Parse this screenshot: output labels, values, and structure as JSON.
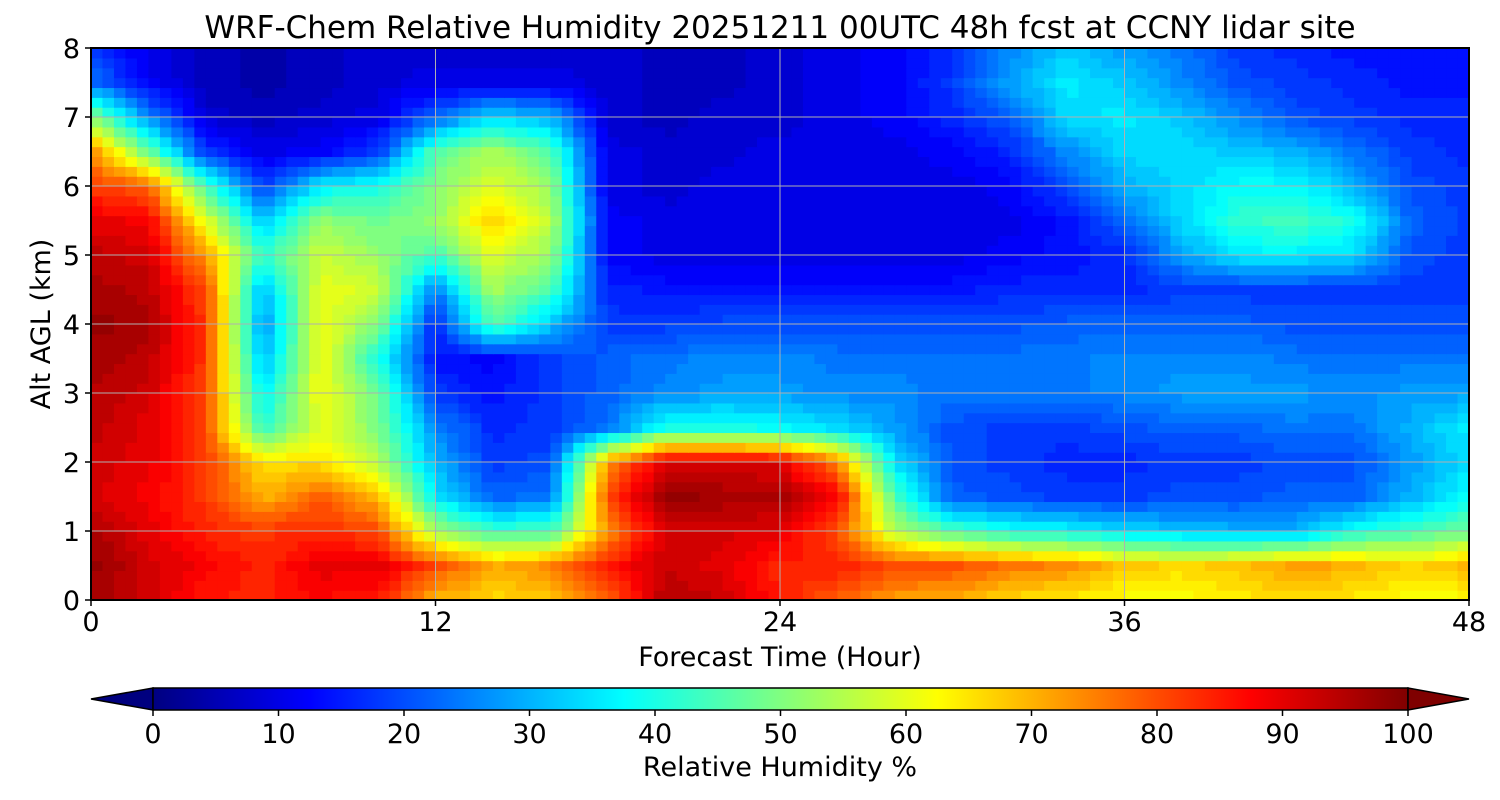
{
  "chart_data": {
    "type": "heatmap",
    "subtype": "filled-contour time-height cross section",
    "title": "WRF-Chem Relative Humidity 20251211 00UTC 48h fcst at CCNY lidar site",
    "xlabel": "Forecast Time (Hour)",
    "ylabel": "Alt AGL (km)",
    "xlim": [
      0,
      48
    ],
    "ylim": [
      0,
      8
    ],
    "x_ticks": [
      0,
      12,
      24,
      36,
      48
    ],
    "y_ticks": [
      0,
      1,
      2,
      3,
      4,
      5,
      6,
      7,
      8
    ],
    "grid": true,
    "colormap": "jet",
    "colorbar": {
      "label": "Relative Humidity %",
      "range": [
        0,
        100
      ],
      "ticks": [
        0,
        10,
        20,
        30,
        40,
        50,
        60,
        70,
        80,
        90,
        100
      ],
      "orientation": "horizontal",
      "extend": "both",
      "placement": "bottom"
    },
    "x": [
      0,
      2,
      4,
      6,
      8,
      10,
      12,
      14,
      16,
      18,
      20,
      22,
      24,
      26,
      28,
      30,
      32,
      34,
      36,
      38,
      40,
      42,
      44,
      46,
      48
    ],
    "y": [
      0,
      0.5,
      1,
      1.5,
      2,
      2.5,
      3,
      3.5,
      4,
      4.5,
      5,
      5.5,
      6,
      6.5,
      7,
      7.5,
      8
    ],
    "z": [
      [
        96,
        92,
        85,
        84,
        87,
        85,
        70,
        66,
        68,
        78,
        95,
        93,
        85,
        78,
        72,
        70,
        66,
        64,
        62,
        62,
        64,
        66,
        64,
        62,
        62
      ],
      [
        98,
        92,
        88,
        84,
        90,
        90,
        80,
        70,
        74,
        85,
        93,
        90,
        84,
        85,
        80,
        80,
        76,
        74,
        68,
        66,
        68,
        72,
        70,
        66,
        70
      ],
      [
        96,
        90,
        84,
        82,
        84,
        80,
        54,
        44,
        44,
        72,
        92,
        92,
        90,
        80,
        55,
        45,
        40,
        38,
        34,
        32,
        30,
        30,
        40,
        44,
        48
      ],
      [
        92,
        88,
        82,
        70,
        78,
        70,
        36,
        22,
        24,
        80,
        98,
        96,
        96,
        88,
        45,
        22,
        20,
        18,
        18,
        20,
        20,
        22,
        22,
        30,
        38
      ],
      [
        92,
        90,
        82,
        65,
        66,
        55,
        30,
        18,
        20,
        72,
        92,
        92,
        90,
        75,
        35,
        20,
        18,
        16,
        16,
        18,
        18,
        20,
        20,
        28,
        34
      ],
      [
        94,
        90,
        80,
        42,
        60,
        50,
        26,
        16,
        18,
        24,
        40,
        40,
        38,
        34,
        28,
        20,
        18,
        18,
        20,
        22,
        22,
        24,
        24,
        30,
        36
      ],
      [
        95,
        92,
        80,
        36,
        62,
        48,
        18,
        14,
        18,
        22,
        26,
        28,
        28,
        26,
        26,
        24,
        24,
        24,
        26,
        28,
        28,
        28,
        26,
        28,
        28
      ],
      [
        96,
        94,
        82,
        30,
        62,
        40,
        14,
        12,
        18,
        22,
        24,
        26,
        26,
        24,
        24,
        24,
        24,
        24,
        26,
        26,
        26,
        24,
        24,
        24,
        24
      ],
      [
        98,
        96,
        82,
        26,
        62,
        50,
        16,
        46,
        32,
        18,
        18,
        20,
        20,
        20,
        20,
        20,
        20,
        22,
        22,
        22,
        22,
        20,
        20,
        20,
        20
      ],
      [
        96,
        94,
        80,
        30,
        60,
        58,
        24,
        54,
        44,
        16,
        14,
        14,
        14,
        14,
        14,
        14,
        16,
        16,
        16,
        18,
        18,
        18,
        18,
        18,
        18
      ],
      [
        94,
        92,
        72,
        42,
        58,
        52,
        44,
        60,
        52,
        12,
        10,
        10,
        10,
        10,
        10,
        10,
        12,
        14,
        16,
        28,
        36,
        36,
        34,
        20,
        18
      ],
      [
        90,
        88,
        60,
        32,
        52,
        48,
        52,
        68,
        56,
        12,
        10,
        10,
        10,
        10,
        10,
        10,
        10,
        14,
        22,
        34,
        42,
        44,
        40,
        22,
        18
      ],
      [
        82,
        78,
        44,
        18,
        36,
        40,
        50,
        60,
        52,
        10,
        8,
        10,
        10,
        10,
        10,
        10,
        12,
        20,
        30,
        34,
        38,
        38,
        30,
        20,
        18
      ],
      [
        74,
        48,
        18,
        10,
        12,
        18,
        46,
        54,
        46,
        10,
        8,
        8,
        10,
        10,
        10,
        12,
        16,
        26,
        34,
        34,
        32,
        30,
        24,
        18,
        16
      ],
      [
        52,
        26,
        8,
        6,
        8,
        10,
        22,
        34,
        30,
        8,
        6,
        8,
        8,
        10,
        12,
        16,
        22,
        34,
        36,
        32,
        26,
        20,
        18,
        16,
        16
      ],
      [
        24,
        12,
        6,
        4,
        6,
        8,
        10,
        10,
        10,
        8,
        6,
        6,
        8,
        10,
        12,
        18,
        28,
        36,
        32,
        26,
        20,
        18,
        16,
        14,
        14
      ],
      [
        18,
        10,
        6,
        4,
        6,
        8,
        8,
        8,
        8,
        8,
        6,
        6,
        8,
        10,
        12,
        16,
        26,
        32,
        28,
        24,
        18,
        16,
        14,
        14,
        14
      ]
    ]
  }
}
